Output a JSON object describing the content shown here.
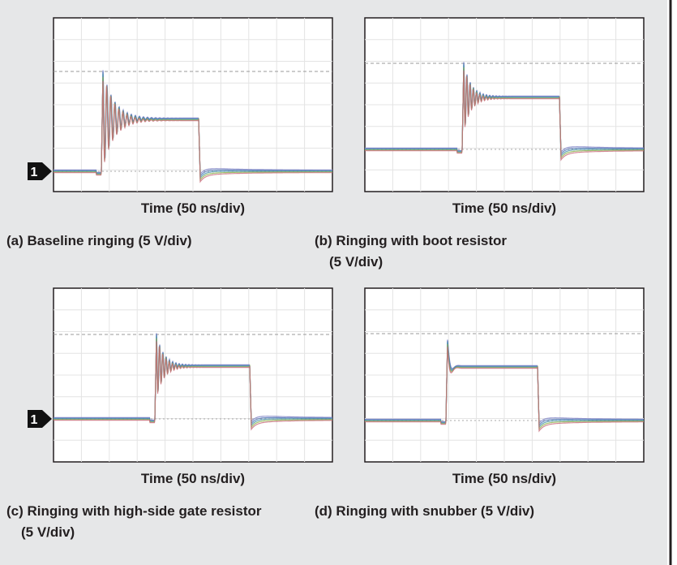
{
  "panels": [
    {
      "marker": "1",
      "x_label": "Time (50 ns/div)",
      "caption": [
        "(a) Baseline ringing (5 V/div)"
      ]
    },
    {
      "x_label": "Time (50 ns/div)",
      "caption": [
        "(b) Ringing with boot resistor",
        "(5 V/div)"
      ]
    },
    {
      "marker": "1",
      "x_label": "Time (50 ns/div)",
      "caption": [
        "(c) Ringing with high-side gate resistor",
        "(5 V/div)"
      ]
    },
    {
      "x_label": "Time (50 ns/div)",
      "caption": [
        "(d) Ringing with snubber (5 V/div)"
      ]
    }
  ]
}
